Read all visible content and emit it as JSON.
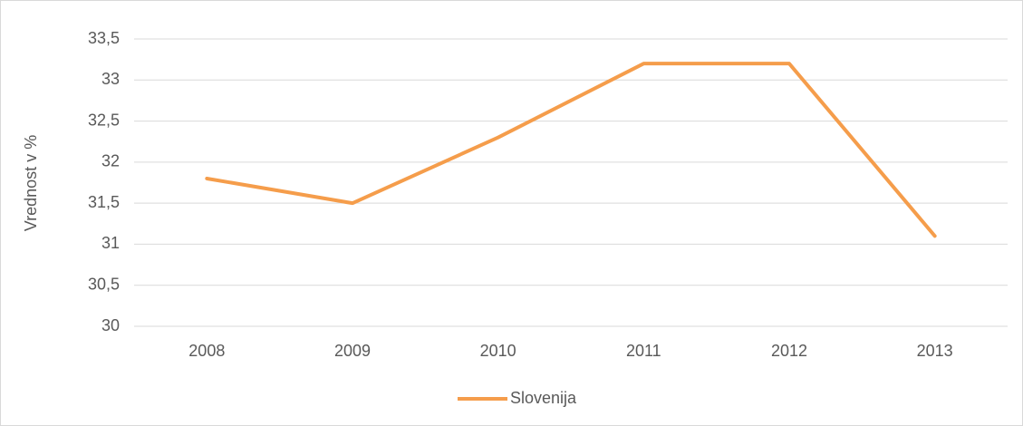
{
  "chart_data": {
    "type": "line",
    "y_label": "Vrednost v %",
    "categories": [
      "2008",
      "2009",
      "2010",
      "2011",
      "2012",
      "2013"
    ],
    "series": [
      {
        "name": "Slovenija",
        "color": "#f59d4b",
        "values": [
          31.8,
          31.5,
          32.3,
          33.2,
          33.2,
          31.1
        ]
      }
    ],
    "ylim": [
      30,
      33.5
    ],
    "yticks": [
      30,
      {
        "value": 30.5,
        "label": "30,5"
      },
      31,
      {
        "value": 31.5,
        "label": "31,5"
      },
      32,
      {
        "value": 32.5,
        "label": "32,5"
      },
      33,
      {
        "value": 33.5,
        "label": "33,5"
      }
    ],
    "grid": true,
    "legend": "bottom"
  }
}
